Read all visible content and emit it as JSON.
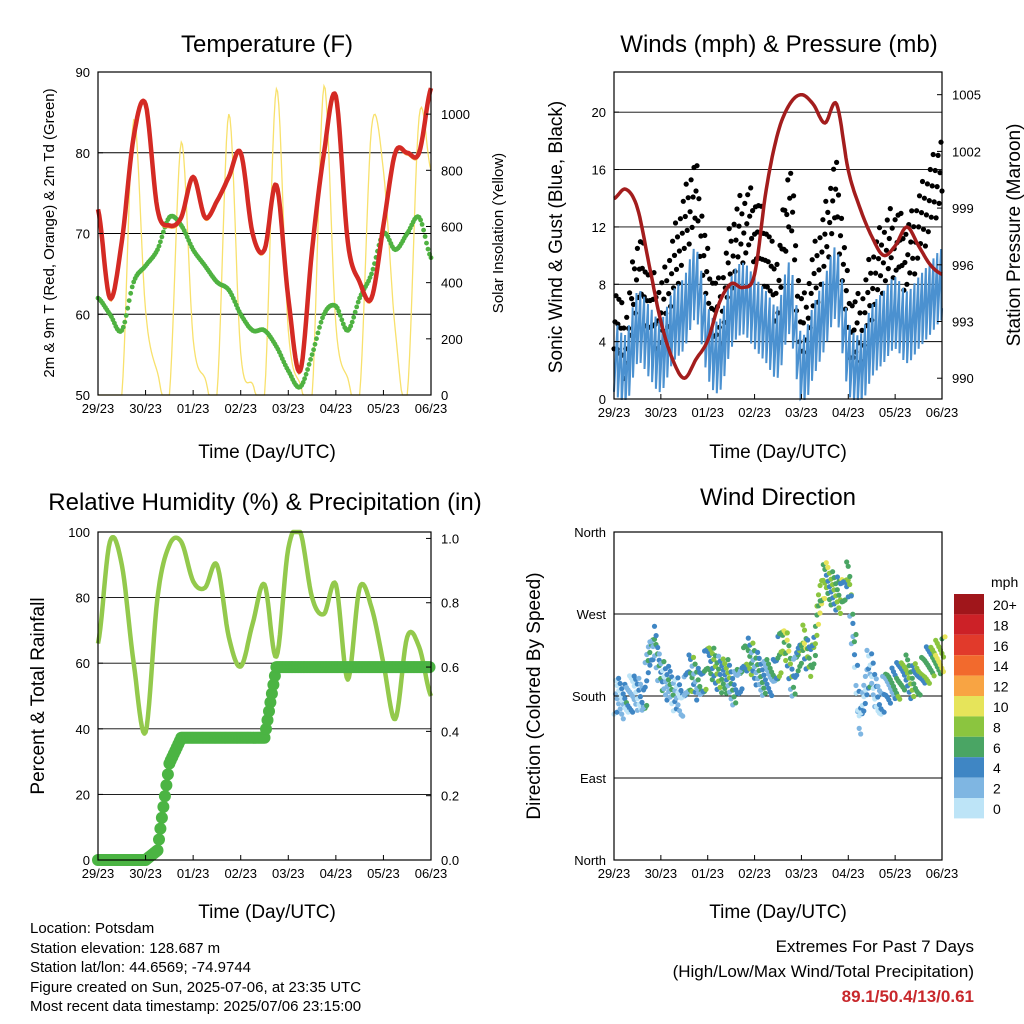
{
  "x_ticks": [
    "29/23",
    "30/23",
    "01/23",
    "02/23",
    "03/23",
    "04/23",
    "05/23",
    "06/23"
  ],
  "panels": {
    "temperature": {
      "title": "Temperature (F)",
      "xlabel": "Time (Day/UTC)",
      "ylabel_left": "2m & 9m T (Red, Orange) & 2m Td (Green)",
      "ylabel_right": "Solar Insolation (Yellow)",
      "yticks_left": [
        "50",
        "60",
        "70",
        "80",
        "90"
      ],
      "yticks_right": [
        "0",
        "200",
        "400",
        "600",
        "800",
        "1000"
      ]
    },
    "winds": {
      "title": "Winds (mph) & Pressure (mb)",
      "xlabel": "Time (Day/UTC)",
      "ylabel_left": "Sonic Wind & Gust (Blue, Black)",
      "ylabel_right": "Station Pressure (Maroon)",
      "yticks_left": [
        "0",
        "4",
        "8",
        "12",
        "16",
        "20"
      ],
      "yticks_right": [
        "990",
        "993",
        "996",
        "999",
        "1002",
        "1005"
      ]
    },
    "humidity": {
      "title": "Relative Humidity (%) & Precipitation (in)",
      "xlabel": "Time (Day/UTC)",
      "ylabel_left": "Percent & Total Rainfall",
      "yticks_left": [
        "0",
        "20",
        "40",
        "60",
        "80",
        "100"
      ],
      "yticks_right": [
        "0.0",
        "0.2",
        "0.4",
        "0.6",
        "0.8",
        "1.0"
      ]
    },
    "direction": {
      "title": "Wind Direction",
      "xlabel": "Time (Day/UTC)",
      "ylabel_left": "Direction (Colored By Speed)",
      "yticks_left": [
        "North",
        "East",
        "South",
        "West",
        "North"
      ],
      "legend_title": "mph",
      "legend_labels": [
        "20+",
        "18",
        "16",
        "14",
        "12",
        "10",
        "8",
        "6",
        "4",
        "2",
        "0"
      ],
      "legend_colors": [
        "#a0161b",
        "#cc2127",
        "#e13a2b",
        "#f26a2d",
        "#f8a443",
        "#e6e45a",
        "#8bc53f",
        "#4aa564",
        "#3f86c4",
        "#7fb6e2",
        "#bde4f7"
      ]
    }
  },
  "info": {
    "location": "Location: Potsdam",
    "elevation": "Station elevation: 128.687 m",
    "latlon": "Station lat/lon: 44.6569; -74.9744",
    "created": "Figure created on Sun, 2025-07-06, at 23:35 UTC",
    "recent": "Most recent data timestamp: 2025/07/06 23:15:00"
  },
  "extremes": {
    "line1": "Extremes For Past 7 Days",
    "line2": "(High/Low/Max Wind/Total Precipitation)",
    "values": "89.1/50.4/13/0.61"
  },
  "colors": {
    "temp2m": "#d42a24",
    "temp9m": "#f3a23c",
    "dewpoint": "#4fb241",
    "solar": "#f8e16c",
    "wind": "#4b91d0",
    "gust": "#000000",
    "pressure": "#a31d1d",
    "rh": "#93c94c",
    "precip": "#4bb443"
  },
  "chart_data": [
    {
      "type": "line",
      "title": "Temperature (F)",
      "xlabel": "Time (Day/UTC)",
      "ylabel": "2m & 9m T (Red, Orange) & 2m Td (Green)",
      "y2label": "Solar Insolation (Yellow)",
      "x": [
        0,
        0.25,
        0.5,
        0.75,
        1,
        1.25,
        1.5,
        1.75,
        2,
        2.25,
        2.5,
        2.75,
        3,
        3.25,
        3.5,
        3.75,
        4,
        4.25,
        4.5,
        4.75,
        5,
        5.25,
        5.5,
        5.75,
        6,
        6.25,
        6.5,
        6.75,
        7
      ],
      "ylim": [
        50,
        90
      ],
      "y2lim": [
        0,
        1150
      ],
      "series": [
        {
          "name": "2m T",
          "axis": "left",
          "values": [
            73,
            62,
            69,
            82,
            86,
            73,
            71,
            72,
            77,
            72,
            74,
            77,
            80,
            70,
            68,
            76,
            62,
            53,
            68,
            80,
            87,
            69,
            64,
            62,
            71,
            80,
            80,
            80,
            88
          ]
        },
        {
          "name": "2m Td",
          "axis": "left",
          "values": [
            62,
            60,
            58,
            64,
            66,
            68,
            72,
            71,
            68,
            66,
            64,
            63,
            60,
            58,
            58,
            56,
            53,
            51,
            55,
            60,
            61,
            58,
            62,
            65,
            70,
            68,
            70,
            72,
            67
          ]
        },
        {
          "name": "Solar Insolation",
          "axis": "right",
          "values": [
            0,
            0,
            0,
            980,
            300,
            80,
            0,
            900,
            200,
            60,
            0,
            1000,
            150,
            40,
            0,
            1090,
            230,
            40,
            0,
            1100,
            250,
            60,
            0,
            950,
            800,
            230,
            0,
            990,
            800
          ]
        }
      ]
    },
    {
      "type": "line",
      "title": "Winds (mph) & Pressure (mb)",
      "xlabel": "Time (Day/UTC)",
      "ylabel": "Sonic Wind & Gust (Blue, Black)",
      "y2label": "Station Pressure (Maroon)",
      "x": [
        0,
        0.25,
        0.5,
        0.75,
        1,
        1.25,
        1.5,
        1.75,
        2,
        2.25,
        2.5,
        2.75,
        3,
        3.25,
        3.5,
        3.75,
        4,
        4.25,
        4.5,
        4.75,
        5,
        5.25,
        5.5,
        5.75,
        6,
        6.25,
        6.5,
        6.75,
        7
      ],
      "ylim": [
        0,
        22.8
      ],
      "y2lim": [
        988.9,
        1006.2
      ],
      "series": [
        {
          "name": "Sonic Wind",
          "axis": "left",
          "values": [
            3,
            2,
            5,
            4,
            3,
            5,
            6,
            8,
            4,
            3,
            6,
            7,
            6,
            5,
            4,
            7,
            2,
            4,
            6,
            8,
            3,
            2,
            4,
            5,
            6,
            5,
            6,
            7,
            8
          ]
        },
        {
          "name": "Gust",
          "axis": "left",
          "values": [
            6,
            4,
            9,
            7,
            6,
            9,
            12,
            14,
            8,
            6,
            10,
            12,
            12,
            10,
            8,
            14,
            5,
            8,
            11,
            14,
            6,
            5,
            8,
            10,
            11,
            10,
            12,
            14,
            16
          ]
        },
        {
          "name": "Station Pressure",
          "axis": "right",
          "values": [
            999.5,
            1000,
            999,
            996,
            993,
            991,
            990,
            991,
            992,
            994,
            995,
            994.8,
            995.5,
            1000,
            1003,
            1004.5,
            1005,
            1004.5,
            1003.5,
            1004.5,
            1001,
            999,
            997.5,
            996.5,
            997,
            998,
            997,
            996,
            995.5
          ]
        }
      ]
    },
    {
      "type": "line",
      "title": "Relative Humidity (%) & Precipitation (in)",
      "xlabel": "Time (Day/UTC)",
      "ylabel": "Percent & Total Rainfall",
      "x": [
        0,
        0.25,
        0.5,
        0.75,
        1,
        1.25,
        1.5,
        1.75,
        2,
        2.25,
        2.5,
        2.75,
        3,
        3.25,
        3.5,
        3.75,
        4,
        4.25,
        4.5,
        4.75,
        5,
        5.25,
        5.5,
        5.75,
        6,
        6.25,
        6.5,
        6.75,
        7
      ],
      "ylim": [
        0,
        100
      ],
      "y2lim": [
        0,
        1.02
      ],
      "series": [
        {
          "name": "Relative Humidity",
          "axis": "left",
          "values": [
            66,
            97,
            90,
            60,
            39,
            80,
            96,
            97,
            85,
            83,
            90,
            68,
            59,
            72,
            84,
            62,
            95,
            100,
            80,
            75,
            84,
            55,
            83,
            77,
            60,
            43,
            68,
            65,
            50
          ]
        },
        {
          "name": "Total Precipitation",
          "axis": "right",
          "values": [
            0,
            0,
            0,
            0,
            0,
            0.03,
            0.3,
            0.38,
            0.38,
            0.38,
            0.38,
            0.38,
            0.38,
            0.38,
            0.38,
            0.6,
            0.6,
            0.6,
            0.6,
            0.6,
            0.6,
            0.6,
            0.6,
            0.6,
            0.6,
            0.6,
            0.6,
            0.6,
            0.6
          ]
        }
      ]
    },
    {
      "type": "scatter",
      "title": "Wind Direction",
      "xlabel": "Time (Day/UTC)",
      "ylabel": "Direction (Colored By Speed)",
      "x": [
        0,
        0.2,
        0.4,
        0.6,
        0.8,
        1,
        1.2,
        1.4,
        1.6,
        1.8,
        2,
        2.2,
        2.4,
        2.6,
        2.8,
        3,
        3.2,
        3.4,
        3.6,
        3.8,
        4,
        4.2,
        4.4,
        4.6,
        4.8,
        5,
        5.2,
        5.4,
        5.6,
        5.8,
        6,
        6.2,
        6.4,
        6.6,
        6.8,
        7
      ],
      "ylim": [
        0,
        360
      ],
      "y": [
        180,
        175,
        185,
        180,
        240,
        200,
        190,
        175,
        205,
        190,
        220,
        205,
        200,
        190,
        225,
        210,
        200,
        205,
        240,
        200,
        240,
        220,
        300,
        300,
        290,
        300,
        160,
        210,
        175,
        190,
        195,
        205,
        195,
        210,
        220,
        225
      ],
      "speed": [
        2,
        3,
        2,
        3,
        4,
        3,
        3,
        2,
        5,
        4,
        6,
        5,
        5,
        3,
        6,
        4,
        3,
        4,
        8,
        4,
        7,
        6,
        8,
        6,
        7,
        5,
        2,
        3,
        2,
        4,
        5,
        6,
        5,
        6,
        7,
        8
      ]
    }
  ]
}
